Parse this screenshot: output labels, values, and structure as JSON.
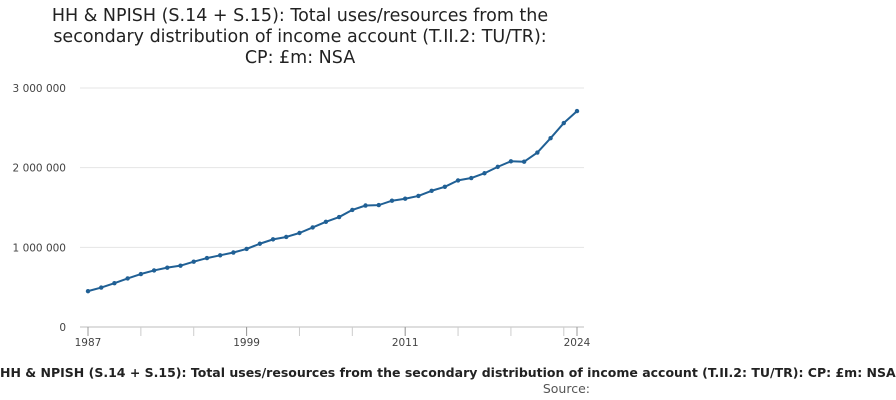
{
  "chart_data": {
    "type": "line",
    "title_lines": [
      "HH & NPISH (S.14 + S.15): Total uses/resources from the",
      "secondary distribution of income account (T.II.2: TU/TR):",
      "CP: £m: NSA"
    ],
    "xlabel": "",
    "ylabel": "",
    "x_tick_labels": [
      "1987",
      "1999",
      "2011",
      "2024"
    ],
    "x_ticks": [
      1987,
      1999,
      2011,
      2024
    ],
    "y_tick_labels": [
      "0",
      "1 000 000",
      "2 000 000",
      "3 000 000"
    ],
    "y_ticks": [
      0,
      1000000,
      2000000,
      3000000
    ],
    "ylim": [
      0,
      3000000
    ],
    "xlim": [
      1987,
      2024
    ],
    "grid": true,
    "series": [
      {
        "name": "HH & NPISH (S.14 + S.15): Total uses/resources from the secondary distribution of income account (T.II.2: TU/TR): CP: £m: NSA",
        "color": "#206095",
        "x": [
          1987,
          1988,
          1989,
          1990,
          1991,
          1992,
          1993,
          1994,
          1995,
          1996,
          1997,
          1998,
          1999,
          2000,
          2001,
          2002,
          2003,
          2004,
          2005,
          2006,
          2007,
          2008,
          2009,
          2010,
          2011,
          2012,
          2013,
          2014,
          2015,
          2016,
          2017,
          2018,
          2019,
          2020,
          2021,
          2022,
          2023,
          2024
        ],
        "values": [
          450000,
          495000,
          550000,
          610000,
          665000,
          710000,
          745000,
          770000,
          820000,
          865000,
          900000,
          935000,
          980000,
          1045000,
          1100000,
          1130000,
          1180000,
          1250000,
          1320000,
          1380000,
          1470000,
          1525000,
          1530000,
          1585000,
          1610000,
          1645000,
          1710000,
          1760000,
          1840000,
          1870000,
          1930000,
          2010000,
          2080000,
          2075000,
          2190000,
          2370000,
          2560000,
          2710000
        ]
      }
    ]
  },
  "legend_text": "HH & NPISH (S.14 + S.15): Total uses/resources from the secondary distribution of income account (T.II.2: TU/TR): CP: £m: NSA",
  "source_label": "Source:"
}
